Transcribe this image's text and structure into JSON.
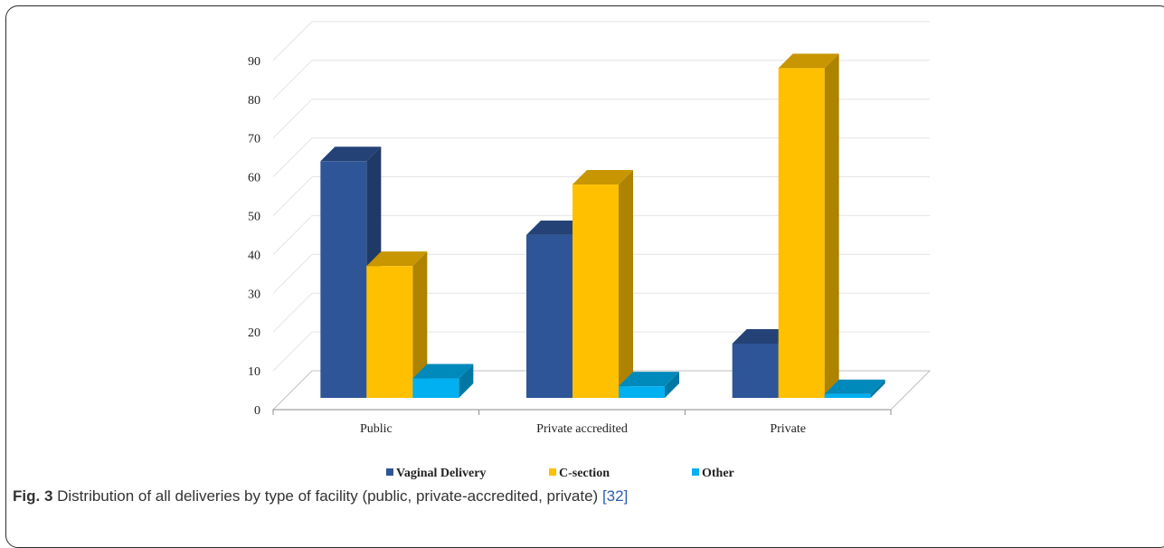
{
  "chart_data": {
    "type": "bar",
    "categories": [
      "Public",
      "Private accredited",
      "Private"
    ],
    "series": [
      {
        "name": "Vaginal Delivery",
        "values": [
          61,
          42,
          14
        ],
        "color": "#2E5597"
      },
      {
        "name": "C-section",
        "values": [
          34,
          55,
          85
        ],
        "color": "#FFC000"
      },
      {
        "name": "Other",
        "values": [
          5,
          3,
          1
        ],
        "color": "#00B0F0"
      }
    ],
    "ylim": [
      0,
      90
    ],
    "yticks": [
      "0",
      "10",
      "20",
      "30",
      "40",
      "50",
      "60",
      "70",
      "80",
      "90"
    ],
    "grid": true,
    "style": "3d-clustered-column",
    "legend_position": "bottom"
  },
  "caption": {
    "label": "Fig. 3",
    "text": " Distribution of all deliveries by type of facility (public, private-accredited, private) ",
    "ref": "[32]"
  }
}
